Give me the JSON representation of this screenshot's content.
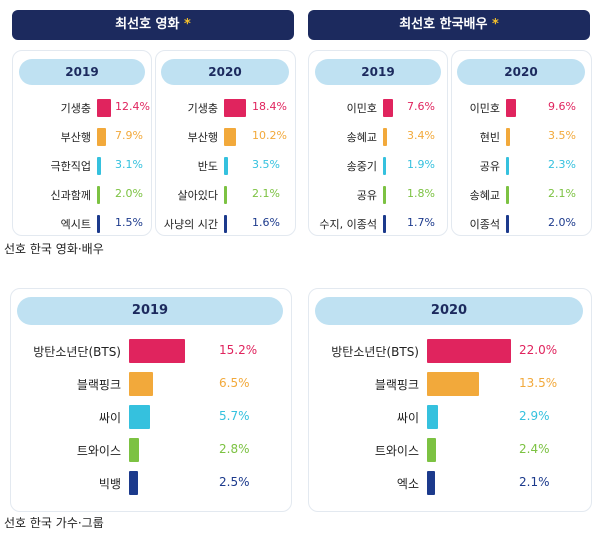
{
  "colors": [
    "#e0245e",
    "#f2a93b",
    "#35c1de",
    "#7cc242",
    "#1c3a8c"
  ],
  "movies": {
    "title": "최선호 영화",
    "star": "*"
  },
  "actors": {
    "title": "최선호 한국배우",
    "star": "*"
  },
  "caption_top": "선호 한국 영화·배우",
  "caption_bottom": "선호 한국 가수·그룹",
  "chart_data": [
    {
      "type": "bar",
      "title": "최선호 영화",
      "subtitle": "2019",
      "categories": [
        "기생충",
        "부산행",
        "극한직업",
        "신과함께",
        "엑시트"
      ],
      "values": [
        12.4,
        7.9,
        3.1,
        2.0,
        1.5
      ],
      "value_labels": [
        "12.4%",
        "7.9%",
        "3.1%",
        "2.0%",
        "1.5%"
      ]
    },
    {
      "type": "bar",
      "title": "최선호 영화",
      "subtitle": "2020",
      "categories": [
        "기생충",
        "부산행",
        "반도",
        "살아있다",
        "사냥의 시간"
      ],
      "values": [
        18.4,
        10.2,
        3.5,
        2.1,
        1.6
      ],
      "value_labels": [
        "18.4%",
        "10.2%",
        "3.5%",
        "2.1%",
        "1.6%"
      ]
    },
    {
      "type": "bar",
      "title": "최선호 한국배우",
      "subtitle": "2019",
      "categories": [
        "이민호",
        "송혜교",
        "송중기",
        "공유",
        "수지, 이종석"
      ],
      "values": [
        7.6,
        3.4,
        1.9,
        1.8,
        1.7
      ],
      "value_labels": [
        "7.6%",
        "3.4%",
        "1.9%",
        "1.8%",
        "1.7%"
      ]
    },
    {
      "type": "bar",
      "title": "최선호 한국배우",
      "subtitle": "2020",
      "categories": [
        "이민호",
        "현빈",
        "공유",
        "송혜교",
        "이종석"
      ],
      "values": [
        9.6,
        3.5,
        2.3,
        2.1,
        2.0
      ],
      "value_labels": [
        "9.6%",
        "3.5%",
        "2.3%",
        "2.1%",
        "2.0%"
      ]
    },
    {
      "type": "bar",
      "subtitle": "2019",
      "categories": [
        "방탄소년단(BTS)",
        "블랙핑크",
        "싸이",
        "트와이스",
        "빅뱅"
      ],
      "values": [
        15.2,
        6.5,
        5.7,
        2.8,
        2.5
      ],
      "value_labels": [
        "15.2%",
        "6.5%",
        "5.7%",
        "2.8%",
        "2.5%"
      ]
    },
    {
      "type": "bar",
      "subtitle": "2020",
      "categories": [
        "방탄소년단(BTS)",
        "블랙핑크",
        "싸이",
        "트와이스",
        "엑소"
      ],
      "values": [
        22.0,
        13.5,
        2.9,
        2.4,
        2.1
      ],
      "value_labels": [
        "22.0%",
        "13.5%",
        "2.9%",
        "2.4%",
        "2.1%"
      ]
    }
  ]
}
